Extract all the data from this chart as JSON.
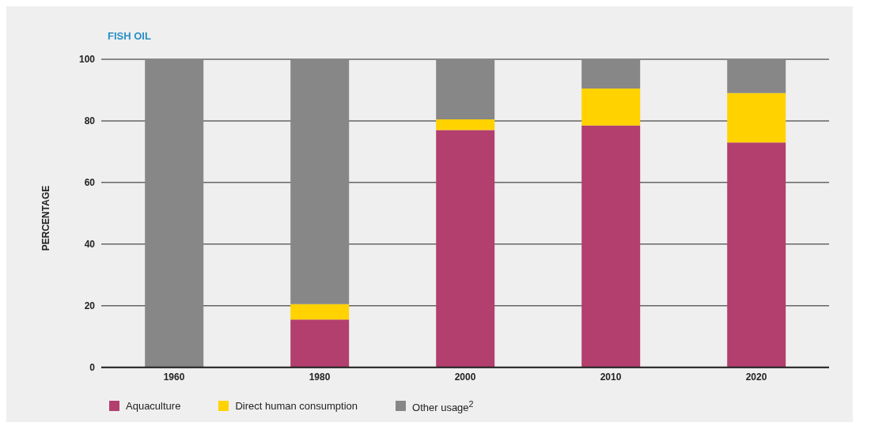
{
  "chart_data": {
    "type": "bar",
    "title": "FISH OIL",
    "ylabel": "PERCENTAGE",
    "stacked": true,
    "categories": [
      "1960",
      "1980",
      "2000",
      "2010",
      "2020"
    ],
    "series": [
      {
        "name": "Aquaculture",
        "color": "#b33f6e",
        "values": [
          0,
          15.5,
          77,
          78.5,
          73
        ]
      },
      {
        "name": "Direct human consumption",
        "color": "#ffd200",
        "values": [
          0,
          5,
          3.5,
          12,
          16
        ]
      },
      {
        "name": "Other usage$^{2}$",
        "color": "#878787",
        "values": [
          100,
          79.5,
          19.5,
          9.5,
          11
        ]
      }
    ],
    "ylim": [
      0,
      100
    ],
    "yticks": [
      0,
      20,
      40,
      60,
      80,
      100
    ],
    "grid": "y",
    "legend": "bottom left"
  }
}
